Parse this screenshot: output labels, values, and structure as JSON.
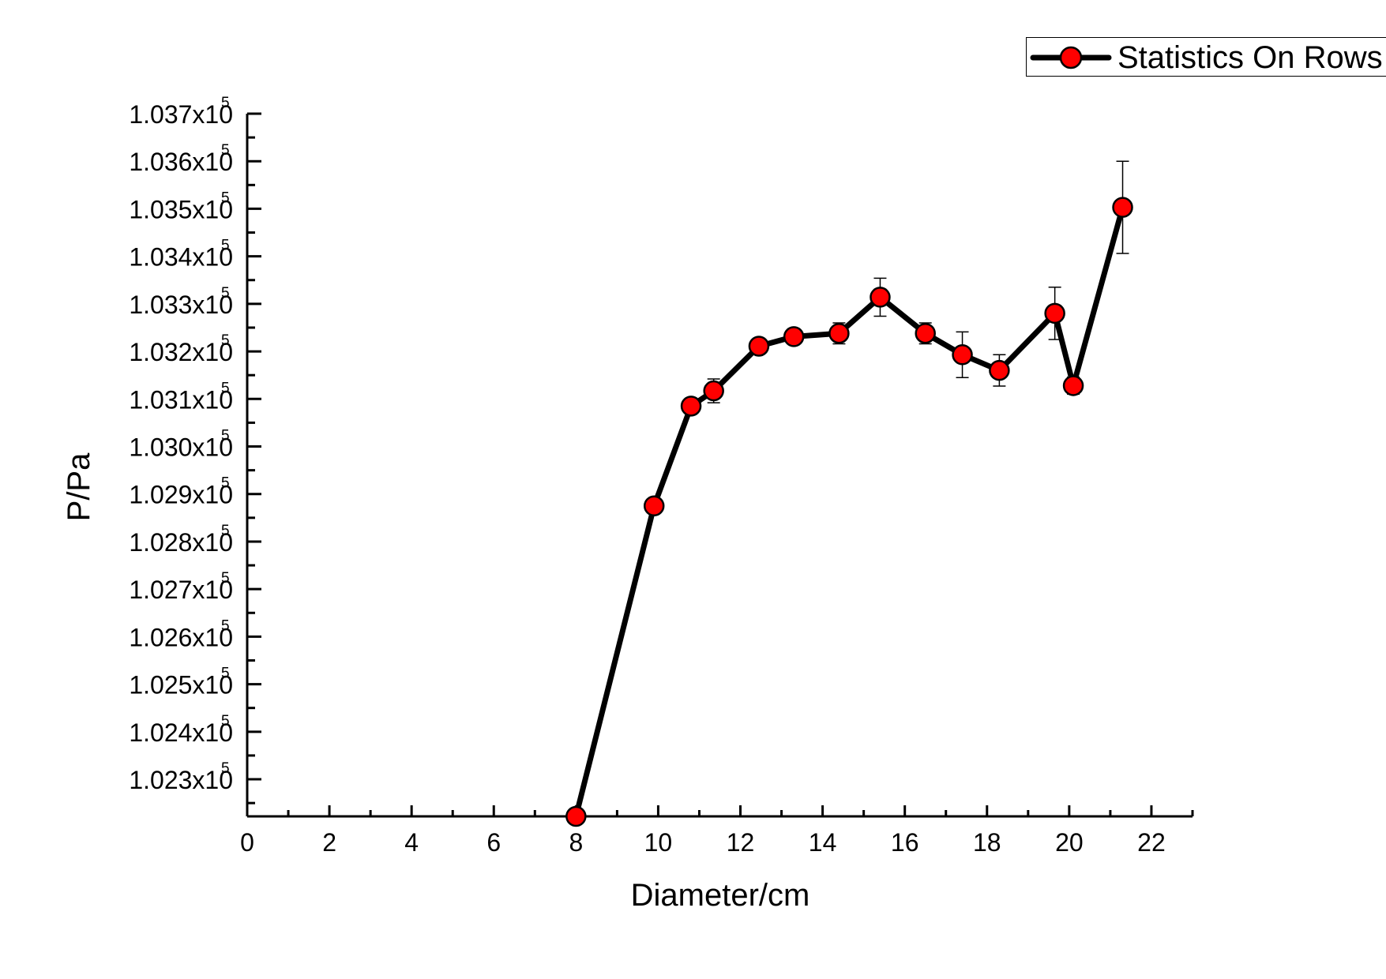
{
  "chart_data": {
    "type": "line",
    "xlabel": "Diameter/cm",
    "ylabel": "P/Pa",
    "xlim": [
      0,
      23
    ],
    "ylim": [
      1.02222,
      1.037
    ],
    "x_ticks": [
      0,
      2,
      4,
      6,
      8,
      10,
      12,
      14,
      16,
      18,
      20,
      22
    ],
    "y_tick_values": [
      1.023,
      1.024,
      1.025,
      1.026,
      1.027,
      1.028,
      1.029,
      1.03,
      1.031,
      1.032,
      1.033,
      1.034,
      1.035,
      1.036,
      1.037
    ],
    "y_tick_labels": [
      "1.023x10",
      "1.024x10",
      "1.025x10",
      "1.026x10",
      "1.027x10",
      "1.028x10",
      "1.029x10",
      "1.030x10",
      "1.031x10",
      "1.032x10",
      "1.033x10",
      "1.034x10",
      "1.035x10",
      "1.036x10",
      "1.037x10"
    ],
    "y_tick_exponent": "5",
    "grid": false,
    "legend_position": "top-right",
    "series": [
      {
        "name": "Statistics On Rows",
        "color": "#000000",
        "marker_color": "#ff0000",
        "points": [
          {
            "x": 8.0,
            "y": 1.02222,
            "err": 0
          },
          {
            "x": 9.9,
            "y": 1.02875,
            "err": 0
          },
          {
            "x": 10.8,
            "y": 1.03085,
            "err": 0
          },
          {
            "x": 11.35,
            "y": 1.03117,
            "err": 0.00025
          },
          {
            "x": 12.45,
            "y": 1.03211,
            "err": 0
          },
          {
            "x": 13.3,
            "y": 1.03231,
            "err": 0.00015
          },
          {
            "x": 14.4,
            "y": 1.03238,
            "err": 0.00022
          },
          {
            "x": 15.4,
            "y": 1.03314,
            "err": 0.0004
          },
          {
            "x": 16.5,
            "y": 1.03238,
            "err": 0.00022
          },
          {
            "x": 17.4,
            "y": 1.03193,
            "err": 0.00048
          },
          {
            "x": 18.3,
            "y": 1.0316,
            "err": 0.00033
          },
          {
            "x": 19.65,
            "y": 1.0328,
            "err": 0.00055
          },
          {
            "x": 20.1,
            "y": 1.03128,
            "err": 0.00018
          },
          {
            "x": 21.3,
            "y": 1.03503,
            "err": 0.00097
          }
        ]
      }
    ]
  }
}
